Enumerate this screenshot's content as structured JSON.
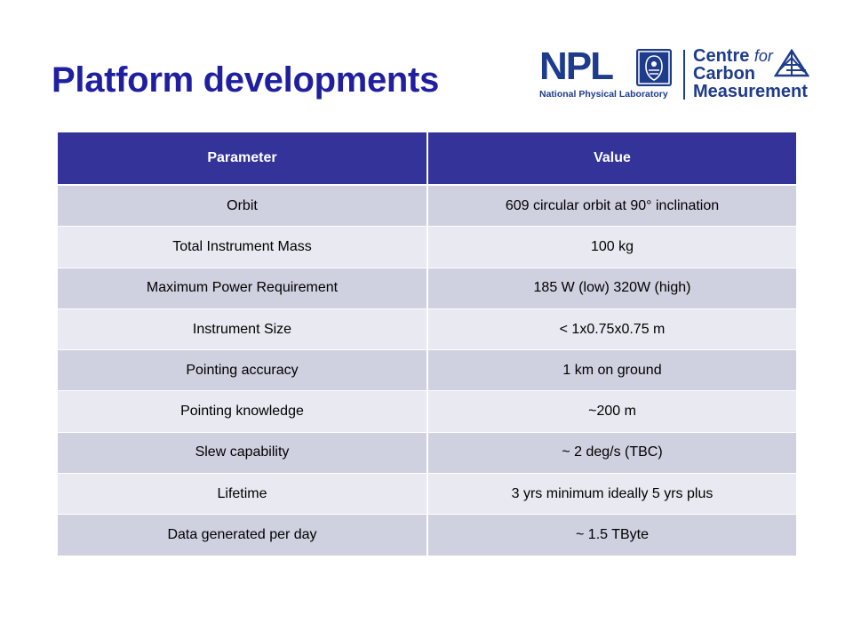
{
  "slide": {
    "title": "Platform developments"
  },
  "logo": {
    "npl": "NPL",
    "npl_subtitle": "National Physical Laboratory",
    "ccm_line1_a": "Centre",
    "ccm_line1_b": "for",
    "ccm_line2": "Carbon",
    "ccm_line3": "Measurement",
    "color": "#1e3c8c"
  },
  "table": {
    "headers": [
      "Parameter",
      "Value"
    ],
    "rows": [
      [
        "Orbit",
        "609 circular orbit at 90° inclination"
      ],
      [
        "Total Instrument Mass",
        "100 kg"
      ],
      [
        "Maximum Power Requirement",
        "185 W (low) 320W (high)"
      ],
      [
        "Instrument Size",
        "< 1x0.75x0.75 m"
      ],
      [
        "Pointing accuracy",
        "1 km on ground"
      ],
      [
        "Pointing knowledge",
        "~200 m"
      ],
      [
        "Slew capability",
        "~ 2 deg/s (TBC)"
      ],
      [
        "Lifetime",
        "3 yrs minimum ideally 5 yrs plus"
      ],
      [
        "Data generated per day",
        "~ 1.5 TByte"
      ]
    ],
    "header_color": "#333399",
    "row_color_odd": "#cfd0e0",
    "row_color_even": "#e9e9f1"
  }
}
